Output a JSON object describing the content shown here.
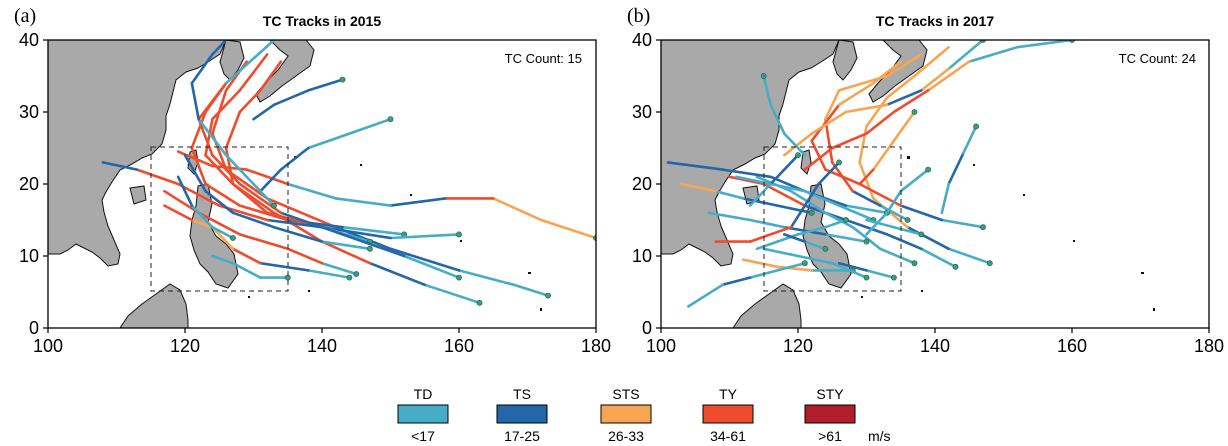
{
  "chart_data": [
    {
      "type": "map",
      "panel": "(a)",
      "title": "TC Tracks in 2015",
      "count_label": "TC Count: 15",
      "xlim": [
        100,
        180
      ],
      "ylim": [
        0,
        40
      ],
      "xticks": [
        "100",
        "120",
        "140",
        "160",
        "180"
      ],
      "yticks": [
        "0",
        "10",
        "20",
        "30",
        "40"
      ],
      "box": {
        "lon": [
          115,
          135
        ],
        "lat": [
          5,
          25
        ]
      },
      "tracks": [
        [
          [
            173,
            4.5,
            0
          ],
          [
            168,
            6,
            0
          ],
          [
            160,
            8,
            1
          ],
          [
            150,
            11,
            1
          ],
          [
            142,
            14,
            3
          ],
          [
            132,
            18,
            3
          ],
          [
            126,
            22,
            3
          ],
          [
            124,
            27,
            3
          ],
          [
            126,
            33,
            3
          ],
          [
            129,
            37,
            1
          ]
        ],
        [
          [
            163,
            3.5,
            0
          ],
          [
            155,
            6,
            1
          ],
          [
            147,
            9,
            3
          ],
          [
            140,
            12,
            3
          ],
          [
            133,
            16,
            3
          ],
          [
            127,
            20,
            3
          ],
          [
            123,
            24,
            3
          ],
          [
            124,
            29,
            3
          ],
          [
            128,
            33,
            3
          ],
          [
            132,
            38,
            1
          ]
        ],
        [
          [
            152,
            13,
            0
          ],
          [
            143,
            14,
            1
          ],
          [
            135,
            15,
            3
          ],
          [
            128,
            17,
            3
          ],
          [
            123,
            20,
            3
          ],
          [
            121,
            25,
            3
          ],
          [
            123,
            30,
            3
          ],
          [
            126,
            34,
            2
          ]
        ],
        [
          [
            160,
            13,
            0
          ],
          [
            150,
            12.5,
            1
          ],
          [
            140,
            14,
            3
          ],
          [
            132,
            16,
            3
          ],
          [
            127,
            20,
            3
          ],
          [
            126,
            25,
            3
          ],
          [
            128,
            30,
            3
          ],
          [
            131,
            33,
            3
          ],
          [
            134,
            37,
            1
          ]
        ],
        [
          [
            147,
            12,
            0
          ],
          [
            140,
            14,
            1
          ],
          [
            132,
            15,
            3
          ],
          [
            125,
            17,
            3
          ],
          [
            119,
            20,
            3
          ],
          [
            113,
            22,
            1
          ],
          [
            108,
            23,
            0
          ]
        ],
        [
          [
            144,
            7,
            0
          ],
          [
            138,
            8,
            1
          ],
          [
            131,
            9,
            3
          ],
          [
            127,
            11,
            2
          ],
          [
            124,
            14,
            2
          ],
          [
            121,
            15,
            3
          ],
          [
            117,
            17,
            2
          ]
        ],
        [
          [
            180,
            12.5,
            2
          ],
          [
            172,
            15,
            2
          ],
          [
            165,
            18,
            3
          ],
          [
            158,
            18,
            1
          ],
          [
            150,
            17,
            0
          ],
          [
            142,
            18,
            0
          ],
          [
            135,
            20,
            3
          ],
          [
            129,
            22,
            3
          ],
          [
            124,
            22.5,
            3
          ],
          [
            119,
            24.5,
            0
          ]
        ],
        [
          [
            147,
            11,
            0
          ],
          [
            140,
            12,
            1
          ],
          [
            133,
            14,
            1
          ],
          [
            127,
            16,
            1
          ],
          [
            123,
            19,
            1
          ],
          [
            120,
            24,
            0
          ]
        ],
        [
          [
            145,
            7.5,
            0
          ],
          [
            140,
            9,
            3
          ],
          [
            135,
            11,
            3
          ],
          [
            128,
            13,
            3
          ],
          [
            122,
            16,
            3
          ],
          [
            117,
            19,
            1
          ]
        ],
        [
          [
            127,
            12.5,
            0
          ],
          [
            124,
            14,
            0
          ],
          [
            121,
            17,
            1
          ],
          [
            119,
            21,
            0
          ]
        ],
        [
          [
            135,
            7,
            0
          ],
          [
            131,
            7,
            0
          ],
          [
            127,
            9,
            0
          ],
          [
            124,
            10,
            0
          ]
        ],
        [
          [
            150,
            29,
            0
          ],
          [
            144,
            27,
            0
          ],
          [
            138,
            25,
            1
          ],
          [
            134,
            22,
            1
          ],
          [
            131,
            19,
            1
          ]
        ],
        [
          [
            160,
            7,
            0
          ],
          [
            152,
            10,
            1
          ],
          [
            146,
            12,
            1
          ],
          [
            140,
            14,
            1
          ],
          [
            134,
            16,
            3
          ],
          [
            128,
            20,
            3
          ],
          [
            124,
            24,
            3
          ],
          [
            122,
            29,
            3
          ],
          [
            126,
            34,
            0
          ],
          [
            133,
            40,
            0
          ]
        ],
        [
          [
            133,
            17,
            0
          ],
          [
            126,
            24,
            0
          ],
          [
            122,
            29,
            1
          ],
          [
            121,
            34,
            1
          ],
          [
            124,
            38,
            1
          ],
          [
            126,
            40,
            1
          ]
        ],
        [
          [
            143,
            34.5,
            1
          ],
          [
            138,
            33,
            1
          ],
          [
            133,
            31,
            1
          ],
          [
            130,
            29,
            1
          ]
        ]
      ]
    },
    {
      "type": "map",
      "panel": "(b)",
      "title": "TC Tracks in 2017",
      "count_label": "TC Count: 24",
      "xlim": [
        100,
        180
      ],
      "ylim": [
        0,
        40
      ],
      "xticks": [
        "100",
        "120",
        "140",
        "160",
        "180"
      ],
      "yticks": [
        "0",
        "10",
        "20",
        "30",
        "40"
      ],
      "box": {
        "lon": [
          115,
          135
        ],
        "lat": [
          5,
          25
        ]
      },
      "tracks": [
        [
          [
            148,
            9,
            0
          ],
          [
            142,
            11,
            1
          ],
          [
            136,
            14,
            2
          ],
          [
            131,
            18,
            2
          ],
          [
            129,
            23,
            2
          ],
          [
            130,
            28,
            2
          ],
          [
            133,
            32,
            2
          ],
          [
            137,
            35,
            2
          ],
          [
            142,
            39,
            0
          ]
        ],
        [
          [
            147,
            14,
            0
          ],
          [
            141,
            15,
            1
          ],
          [
            135,
            17,
            3
          ],
          [
            129,
            20,
            3
          ],
          [
            124,
            22,
            3
          ],
          [
            122,
            26,
            3
          ],
          [
            126,
            31,
            2
          ],
          [
            131,
            34,
            2
          ],
          [
            135,
            37,
            0
          ]
        ],
        [
          [
            143,
            8.5,
            0
          ],
          [
            138,
            11,
            1
          ],
          [
            133,
            13,
            1
          ],
          [
            127,
            15,
            1
          ],
          [
            121,
            17,
            3
          ],
          [
            115,
            20,
            3
          ],
          [
            110,
            21,
            1
          ]
        ],
        [
          [
            137,
            9,
            0
          ],
          [
            132,
            11,
            0
          ],
          [
            128,
            14,
            0
          ],
          [
            124,
            16,
            0
          ],
          [
            119,
            19,
            0
          ],
          [
            114,
            21,
            0
          ]
        ],
        [
          [
            136,
            15,
            0
          ],
          [
            132,
            17,
            1
          ],
          [
            128,
            19,
            3
          ],
          [
            125,
            23,
            3
          ],
          [
            124,
            29,
            2
          ],
          [
            126,
            33,
            2
          ],
          [
            133,
            35,
            2
          ],
          [
            138,
            38,
            1
          ]
        ],
        [
          [
            133,
            16,
            0
          ],
          [
            127,
            17,
            1
          ],
          [
            121,
            19,
            1
          ],
          [
            116,
            21,
            1
          ],
          [
            109,
            22,
            1
          ],
          [
            101,
            23,
            1
          ]
        ],
        [
          [
            131,
            15,
            0
          ],
          [
            126,
            17,
            0
          ],
          [
            121,
            19,
            0
          ],
          [
            116,
            20,
            0
          ],
          [
            111,
            21,
            0
          ]
        ],
        [
          [
            130,
            12,
            0
          ],
          [
            124,
            13,
            1
          ],
          [
            118,
            14,
            0
          ],
          [
            113,
            15,
            0
          ],
          [
            107,
            16,
            0
          ]
        ],
        [
          [
            128,
            8,
            0
          ],
          [
            122,
            8,
            2
          ],
          [
            117,
            8.5,
            2
          ],
          [
            112,
            9.5,
            0
          ]
        ],
        [
          [
            127,
            15,
            0
          ],
          [
            124,
            14,
            0
          ],
          [
            120,
            13,
            0
          ],
          [
            117,
            12,
            0
          ],
          [
            114,
            11,
            0
          ]
        ],
        [
          [
            130,
            7,
            0
          ],
          [
            125,
            9,
            0
          ],
          [
            120,
            10,
            0
          ],
          [
            115,
            11,
            0
          ]
        ],
        [
          [
            139,
            22,
            0
          ],
          [
            135,
            19,
            0
          ],
          [
            133,
            16,
            0
          ],
          [
            130,
            13,
            0
          ]
        ],
        [
          [
            121,
            9,
            0
          ],
          [
            117,
            8,
            0
          ],
          [
            113,
            7,
            1
          ],
          [
            109,
            6,
            0
          ],
          [
            104,
            3,
            0
          ]
        ],
        [
          [
            146,
            28,
            0
          ],
          [
            144,
            24,
            1
          ],
          [
            142,
            20,
            0
          ],
          [
            141,
            16,
            0
          ]
        ],
        [
          [
            138,
            13,
            0
          ],
          [
            134,
            14,
            0
          ],
          [
            130,
            15,
            0
          ]
        ],
        [
          [
            134,
            7,
            0
          ],
          [
            130,
            8,
            1
          ],
          [
            126,
            9,
            1
          ]
        ],
        [
          [
            122,
            16,
            1
          ],
          [
            117,
            17,
            1
          ],
          [
            112,
            18,
            0
          ],
          [
            108,
            19,
            2
          ],
          [
            103,
            20,
            2
          ]
        ],
        [
          [
            160,
            40,
            0
          ],
          [
            152,
            39,
            0
          ],
          [
            145,
            37,
            2
          ],
          [
            139,
            33,
            3
          ],
          [
            134,
            30,
            3
          ],
          [
            130,
            27,
            3
          ],
          [
            125,
            25,
            3
          ],
          [
            121,
            22,
            1
          ]
        ],
        [
          [
            147,
            40,
            0
          ],
          [
            142,
            36,
            2
          ],
          [
            138,
            33,
            1
          ],
          [
            133,
            31,
            2
          ],
          [
            127,
            30,
            2
          ],
          [
            122,
            27,
            2
          ],
          [
            118,
            24,
            0
          ]
        ],
        [
          [
            137,
            30,
            2
          ],
          [
            134,
            26,
            2
          ],
          [
            131,
            22,
            3
          ],
          [
            129,
            20,
            3
          ]
        ],
        [
          [
            120,
            24,
            1
          ],
          [
            116,
            20,
            0
          ],
          [
            113,
            17,
            0
          ]
        ],
        [
          [
            115,
            35,
            0
          ],
          [
            116,
            31,
            0
          ],
          [
            118,
            27,
            0
          ],
          [
            121,
            24,
            0
          ]
        ],
        [
          [
            126,
            23,
            1
          ],
          [
            123,
            20,
            1
          ],
          [
            121,
            17,
            1
          ],
          [
            119,
            14,
            3
          ],
          [
            113,
            12,
            3
          ],
          [
            108,
            12,
            3
          ]
        ],
        [
          [
            124,
            11,
            0
          ],
          [
            121,
            12,
            1
          ],
          [
            118,
            13,
            0
          ]
        ]
      ]
    }
  ],
  "legend": {
    "items": [
      {
        "label": "TD",
        "range": "<17",
        "color": "#47acc6"
      },
      {
        "label": "TS",
        "range": "17-25",
        "color": "#2467a9"
      },
      {
        "label": "STS",
        "range": "26-33",
        "color": "#f7a553"
      },
      {
        "label": "TY",
        "range": "34-61",
        "color": "#ef4c2e"
      },
      {
        "label": "STY",
        "range": ">61",
        "color": "#b11d2a"
      }
    ],
    "unit": "m/s"
  },
  "colors": {
    "land": "#a9a9aa",
    "coast": "#111111",
    "start_point": "#3a9e7e"
  }
}
